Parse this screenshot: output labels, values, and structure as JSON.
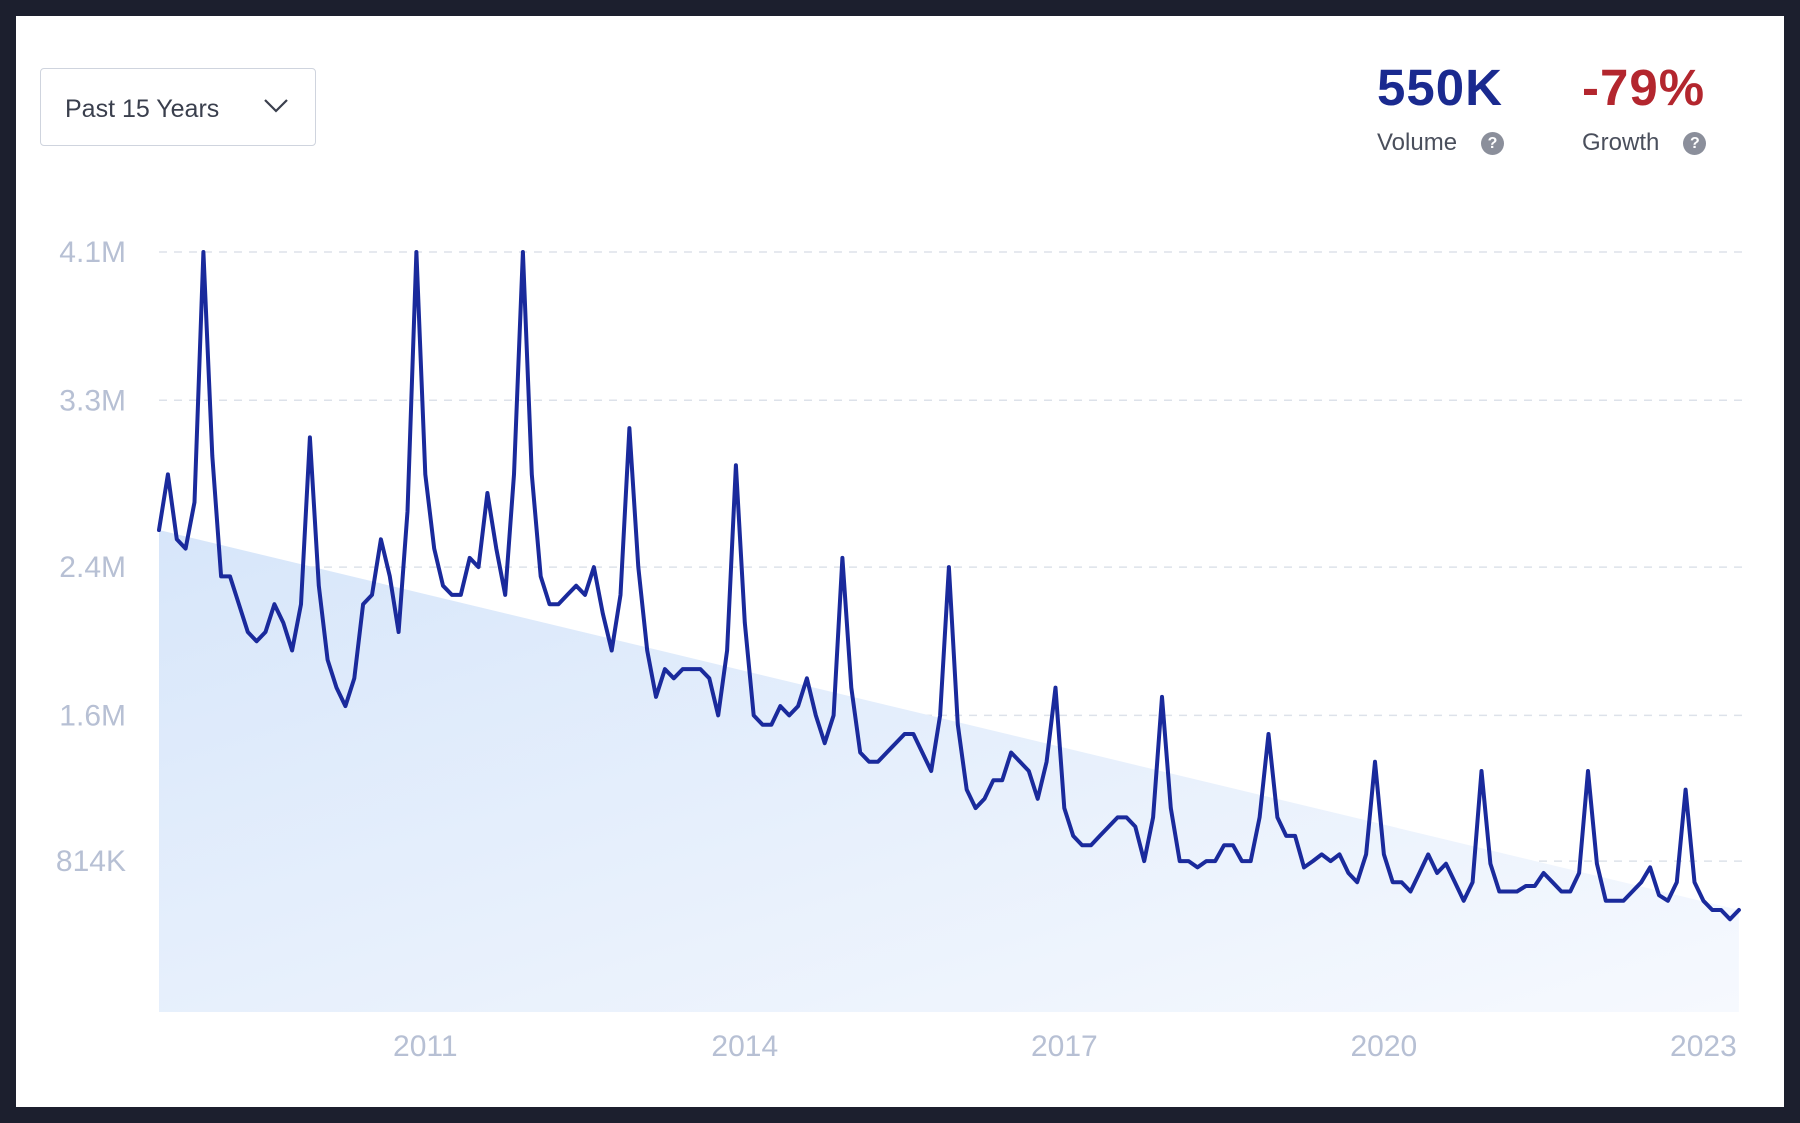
{
  "controls": {
    "range_label": "Past 15 Years"
  },
  "metrics": {
    "volume": {
      "value": "550K",
      "label": "Volume",
      "color": "#1a2a8f"
    },
    "growth": {
      "value": "-79%",
      "label": "Growth",
      "color": "#b3262e"
    }
  },
  "icons": {
    "dropdown": "chevron-down-icon",
    "help": "question-circle-icon"
  },
  "chart_data": {
    "type": "line",
    "title": "",
    "xlabel": "",
    "ylabel": "",
    "y_tick_labels": [
      "4.1M",
      "3.3M",
      "2.4M",
      "1.6M",
      "814K"
    ],
    "y_tick_values": [
      4100000,
      3300000,
      2400000,
      1600000,
      814000
    ],
    "x_tick_labels": [
      "2011",
      "2014",
      "2017",
      "2020",
      "2023"
    ],
    "x_tick_values": [
      2011.0,
      2014.0,
      2017.0,
      2020.0,
      2023.0
    ],
    "ylim": [
      0,
      4100000
    ],
    "xlim": [
      2008.5,
      2023.4
    ],
    "grid": "horizontal dashed",
    "line_color": "#1a2a9c",
    "fill_color": "#dce9fa",
    "series": [
      {
        "x_start": 2008.5,
        "x_step_months": 1,
        "values": [
          2600000,
          2900000,
          2550000,
          2500000,
          2750000,
          4100000,
          3000000,
          2350000,
          2350000,
          2200000,
          2050000,
          2000000,
          2050000,
          2200000,
          2100000,
          1950000,
          2200000,
          3100000,
          2300000,
          1900000,
          1750000,
          1650000,
          1800000,
          2200000,
          2250000,
          2550000,
          2350000,
          2050000,
          2700000,
          4100000,
          2900000,
          2500000,
          2300000,
          2250000,
          2250000,
          2450000,
          2400000,
          2800000,
          2500000,
          2250000,
          2900000,
          4100000,
          2900000,
          2350000,
          2200000,
          2200000,
          2250000,
          2300000,
          2250000,
          2400000,
          2150000,
          1950000,
          2250000,
          3150000,
          2400000,
          1950000,
          1700000,
          1850000,
          1800000,
          1850000,
          1850000,
          1850000,
          1800000,
          1600000,
          1950000,
          2950000,
          2100000,
          1600000,
          1550000,
          1550000,
          1650000,
          1600000,
          1650000,
          1800000,
          1600000,
          1450000,
          1600000,
          2450000,
          1750000,
          1400000,
          1350000,
          1350000,
          1400000,
          1450000,
          1500000,
          1500000,
          1400000,
          1300000,
          1600000,
          2400000,
          1550000,
          1200000,
          1100000,
          1150000,
          1250000,
          1250000,
          1400000,
          1350000,
          1300000,
          1150000,
          1350000,
          1750000,
          1100000,
          950000,
          900000,
          900000,
          950000,
          1000000,
          1050000,
          1050000,
          1000000,
          814000,
          1050000,
          1700000,
          1100000,
          814000,
          814000,
          780000,
          814000,
          814000,
          900000,
          900000,
          814000,
          814000,
          1050000,
          1500000,
          1050000,
          950000,
          950000,
          780000,
          814000,
          850000,
          814000,
          850000,
          750000,
          700000,
          850000,
          1350000,
          850000,
          700000,
          700000,
          650000,
          750000,
          850000,
          750000,
          800000,
          700000,
          600000,
          700000,
          1300000,
          800000,
          650000,
          650000,
          650000,
          680000,
          680000,
          750000,
          700000,
          650000,
          650000,
          750000,
          1300000,
          800000,
          600000,
          600000,
          600000,
          650000,
          700000,
          780000,
          630000,
          600000,
          700000,
          1200000,
          700000,
          600000,
          550000,
          550000,
          500000,
          550000
        ]
      }
    ]
  }
}
